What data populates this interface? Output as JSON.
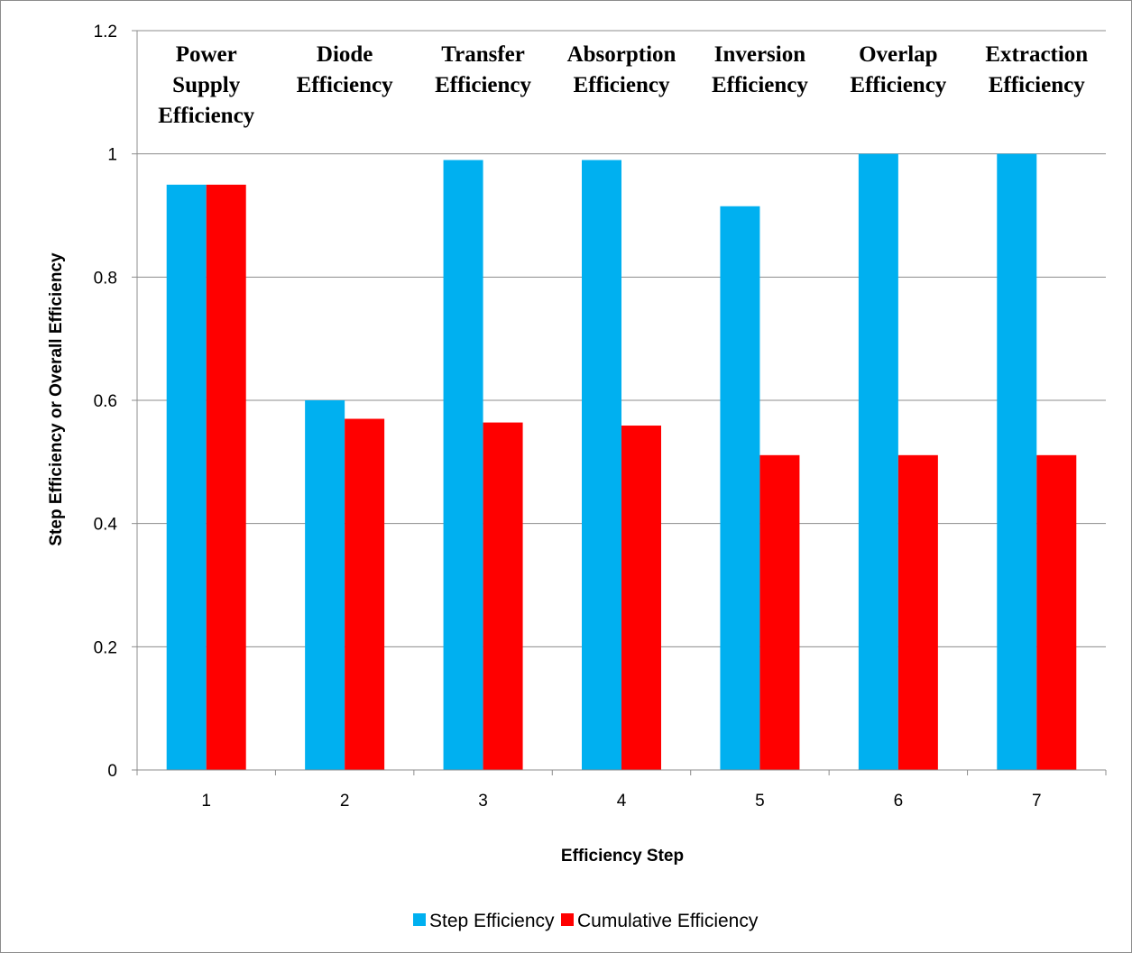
{
  "chart_data": {
    "type": "bar",
    "categories": [
      "1",
      "2",
      "3",
      "4",
      "5",
      "6",
      "7"
    ],
    "series": [
      {
        "name": "Step Efficiency",
        "color": "#00b0f0",
        "values": [
          0.95,
          0.6,
          0.99,
          0.99,
          0.915,
          1.0,
          1.0
        ]
      },
      {
        "name": "Cumulative Efficiency",
        "color": "#ff0000",
        "values": [
          0.95,
          0.57,
          0.564,
          0.559,
          0.511,
          0.511,
          0.511
        ]
      }
    ],
    "title": "",
    "xlabel": "Efficiency Step",
    "ylabel": "Step Efficiency or Overall Efficiency",
    "ylim": [
      0,
      1.2
    ],
    "yticks": [
      "0",
      "0.2",
      "0.4",
      "0.6",
      "0.8",
      "1",
      "1.2"
    ],
    "grid": true,
    "legend_position": "bottom",
    "annotations": [
      [
        "Power",
        "Supply",
        "Efficiency"
      ],
      [
        "Diode",
        "Efficiency"
      ],
      [
        "Transfer",
        "Efficiency"
      ],
      [
        "Absorption",
        "Efficiency"
      ],
      [
        "Inversion",
        "Efficiency"
      ],
      [
        "Overlap",
        "Efficiency"
      ],
      [
        "Extraction",
        "Efficiency"
      ]
    ]
  }
}
